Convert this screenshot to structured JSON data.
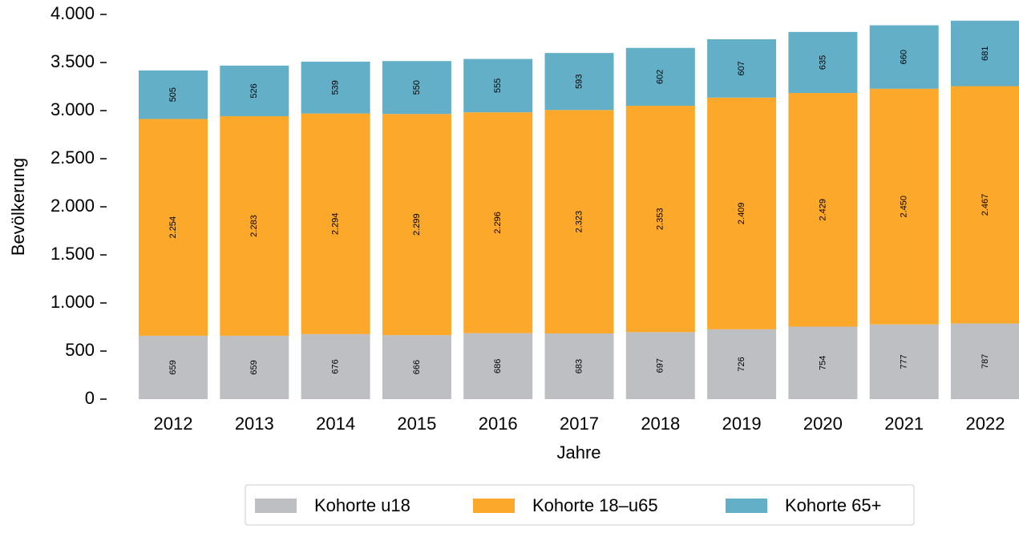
{
  "chart_data": {
    "type": "stacked_bar",
    "x_label": "Jahre",
    "y_label": "Bevölkerung",
    "categories": [
      "2012",
      "2013",
      "2014",
      "2015",
      "2016",
      "2017",
      "2018",
      "2019",
      "2020",
      "2021",
      "2022"
    ],
    "series": [
      {
        "name": "Kohorte u18",
        "color": "#bebfc3",
        "values": [
          659,
          659,
          676,
          666,
          686,
          683,
          697,
          726,
          754,
          777,
          787
        ]
      },
      {
        "name": "Kohorte 18–u65",
        "color": "#fca82a",
        "values": [
          2254,
          2283,
          2294,
          2299,
          2296,
          2323,
          2353,
          2409,
          2429,
          2450,
          2467
        ],
        "value_labels": [
          "2.254",
          "2.283",
          "2.294",
          "2.299",
          "2.296",
          "2.323",
          "2.353",
          "2.409",
          "2.429",
          "2.450",
          "2.467"
        ]
      },
      {
        "name": "Kohorte 65+",
        "color": "#63afc7",
        "values": [
          505,
          526,
          539,
          550,
          555,
          593,
          602,
          607,
          635,
          660,
          681
        ]
      }
    ],
    "ylim": [
      0,
      4000
    ],
    "yticks": [
      0,
      500,
      {
        "value": 1000,
        "label": "1.000"
      },
      {
        "value": 1500,
        "label": "1.500"
      },
      {
        "value": 2000,
        "label": "2.000"
      },
      {
        "value": 2500,
        "label": "2.500"
      },
      {
        "value": 3000,
        "label": "3.000"
      },
      {
        "value": 3500,
        "label": "3.500"
      },
      {
        "value": 4000,
        "label": "4.000"
      }
    ],
    "grid": false,
    "legend": "bottom"
  }
}
